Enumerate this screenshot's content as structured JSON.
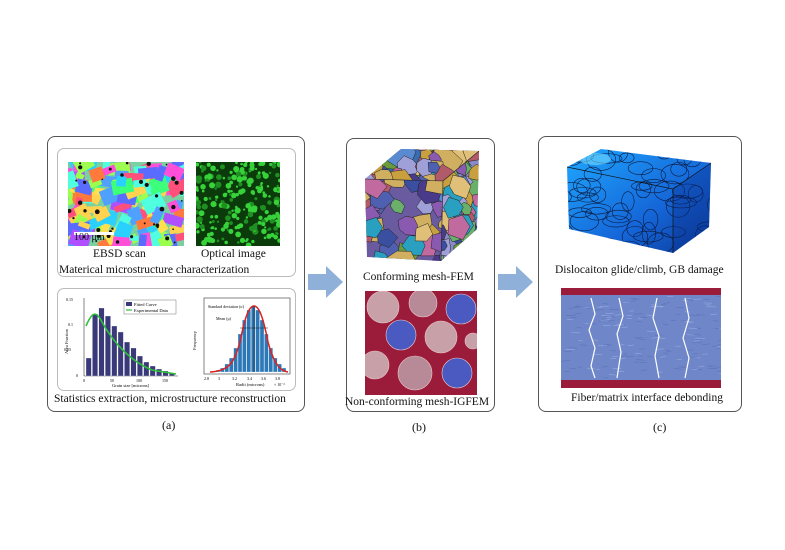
{
  "panel_a": {
    "ebsd_caption": "EBSD scan",
    "scale_bar": "100 μm",
    "optical_caption": "Optical image",
    "characterization_caption": "Materical microstructure characterization",
    "stats_caption": "Statistics extraction, microstructure reconstruction",
    "hist_legend_fit": "Fitted Curve",
    "hist_legend_exp": "Experimental Data",
    "hist_xlabel": "Grain size [microns]",
    "hist_ylabel": "Area Fraction",
    "hist_yticks": [
      "0.15",
      "0.1",
      "0.05",
      "0"
    ],
    "hist_xticks": [
      "0",
      "50",
      "100",
      "150"
    ],
    "gauss_annot_sd": "Standard deviation (σ)",
    "gauss_annot_mean": "Mean (μ)",
    "gauss_xlabel": "Radii (microns)",
    "gauss_ylabel": "Frequency",
    "gauss_exp": "× 10⁻³",
    "gauss_xticks": [
      "2.8",
      "3",
      "3.2",
      "3.4",
      "3.6",
      "3.8"
    ],
    "label": "(a)"
  },
  "panel_b": {
    "conforming_caption": "Conforming mesh-FEM",
    "nonconforming_caption": "Non-conforming mesh-IGFEM",
    "label": "(b)"
  },
  "panel_c": {
    "dislocation_caption": "Dislocaiton glide/climb, GB damage",
    "debond_caption": "Fiber/matrix interface debonding",
    "label": "(c)"
  },
  "colors": {
    "arrow": "#8fb0d8",
    "fiber_matrix_red": "#9b1b3a",
    "crystal_blue": "#2a8fe0",
    "hist_bar": "#3a3a7a",
    "fit_curve": "#2fbf3a",
    "gauss_bar": "#2d79b8",
    "gauss_curve": "#e02020"
  }
}
